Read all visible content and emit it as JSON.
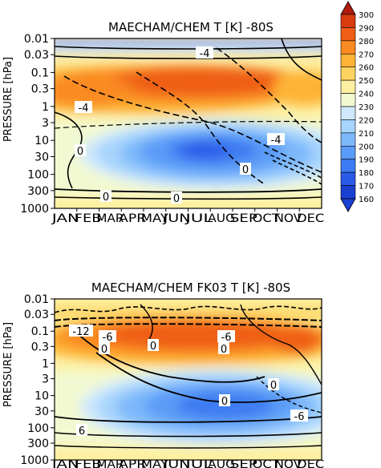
{
  "chart_data": [
    {
      "type": "heatmap",
      "title": "MAECHAM/CHEM T [K] -80S",
      "ylabel": "PRESSURE [hPa]",
      "xlabel": "",
      "x_categories": [
        "JAN",
        "FEB",
        "MAR",
        "APR",
        "MAY",
        "JUN",
        "JUL",
        "AUG",
        "SEP",
        "OCT",
        "NOV",
        "DEC"
      ],
      "y_tick_labels": [
        "0.01",
        "0.03",
        "0.1",
        "0.3",
        "1",
        "3",
        "10",
        "30",
        "100",
        "300",
        "1000"
      ],
      "y_scale": "log",
      "y_range": [
        1000,
        0.01
      ],
      "contour_labels": [
        "-4",
        "-4",
        "-4",
        "0",
        "0",
        "0",
        "0"
      ],
      "colorbar_levels": [
        160,
        170,
        180,
        190,
        200,
        210,
        220,
        230,
        240,
        250,
        260,
        270,
        280,
        290,
        300
      ],
      "colorbar_labels": [
        "300",
        "290",
        "280",
        "270",
        "260",
        "250",
        "240",
        "230",
        "220",
        "210",
        "200",
        "190",
        "180",
        "170",
        "160"
      ]
    },
    {
      "type": "heatmap",
      "title": "MAECHAM/CHEM FK03 T [K] -80S",
      "ylabel": "PRESSURE [hPa]",
      "xlabel": "",
      "x_categories": [
        "JAN",
        "FEB",
        "MAR",
        "APR",
        "MAY",
        "JUN",
        "JUL",
        "AUG",
        "SEP",
        "OCT",
        "NOV",
        "DEC"
      ],
      "y_tick_labels": [
        "0.01",
        "0.03",
        "0.1",
        "0.3",
        "1",
        "3",
        "10",
        "30",
        "100",
        "300",
        "1000"
      ],
      "y_scale": "log",
      "y_range": [
        1000,
        0.01
      ],
      "contour_labels": [
        "-12",
        "-6",
        "0",
        "-6",
        "0",
        "0",
        "0",
        "0",
        "-6",
        "6"
      ]
    }
  ],
  "colors": {
    "scale": [
      "#1a3fd1",
      "#2a5ae8",
      "#3c7bf2",
      "#5a9bf7",
      "#7db8fb",
      "#a6d4fc",
      "#cfe8fd",
      "#f2f9d2",
      "#fdf0a0",
      "#fed460",
      "#fdb336",
      "#fa8a22",
      "#ef5e15",
      "#d93a10",
      "#b01a0c"
    ]
  }
}
